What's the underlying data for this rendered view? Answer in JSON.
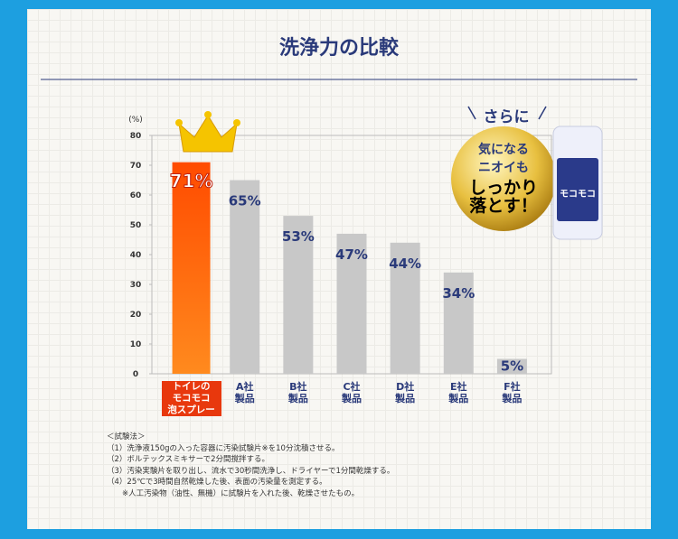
{
  "chart_data": {
    "type": "bar",
    "title": "洗浄力の比較",
    "y_unit": "(%)",
    "categories": [
      "トイレの\nモコモコ\n泡スプレー",
      "A社\n製品",
      "B社\n製品",
      "C社\n製品",
      "D社\n製品",
      "E社\n製品",
      "F社\n製品"
    ],
    "values": [
      71,
      65,
      53,
      47,
      44,
      34,
      5
    ],
    "value_labels": [
      "71%",
      "65%",
      "53%",
      "47%",
      "44%",
      "34%",
      "5%"
    ],
    "colors": [
      "#ff5a00",
      "#c8c8c8",
      "#c8c8c8",
      "#c8c8c8",
      "#c8c8c8",
      "#c8c8c8",
      "#c8c8c8"
    ],
    "ylim": [
      0,
      80
    ],
    "yticks": [
      0,
      10,
      20,
      30,
      40,
      50,
      60,
      70,
      80
    ],
    "grid": false
  },
  "badge": {
    "top": "さらに",
    "lines": [
      "気になる",
      "ニオイも",
      "しっかり",
      "落とす！"
    ]
  },
  "notes": {
    "heading": "＜試験法＞",
    "items": [
      "（1）洗浄液150gの入った容器に汚染試験片※を10分沈積させる。",
      "（2）ボルテックスミキサーで2分間撹拌する。",
      "（3）汚染実験片を取り出し、流水で30秒間洗浄し、ドライヤーで1分間乾燥する。",
      "（4）25℃で3時間自然乾燥した後、表面の汚染量を測定する。",
      "　　※人工汚染物（油性、無機）に試験片を入れた後、乾燥させたもの。"
    ]
  }
}
